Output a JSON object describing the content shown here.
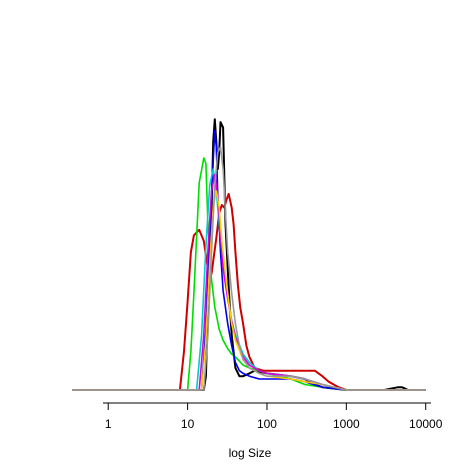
{
  "chart_data": {
    "type": "line",
    "title": "",
    "xlabel": "log Size",
    "ylabel": "",
    "xscale": "log",
    "xlim": [
      0.33,
      12000
    ],
    "ylim": [
      0,
      1.05
    ],
    "x_ticks": [
      1,
      10,
      100,
      1000,
      10000
    ],
    "x_tick_labels": [
      "1",
      "10",
      "100",
      "1000",
      "10000"
    ],
    "grid": false,
    "legend": "none",
    "series": [
      {
        "color": "#cc0000",
        "x": [
          0.35,
          8,
          9,
          10,
          11,
          12,
          14,
          16,
          18,
          20,
          23,
          25,
          27,
          29,
          31,
          33,
          36,
          38,
          40,
          43,
          46,
          50,
          55,
          60,
          70,
          90,
          130,
          200,
          300,
          400,
          500,
          600,
          800,
          1000,
          3000,
          10000
        ],
        "y": [
          0,
          0,
          0.14,
          0.32,
          0.5,
          0.56,
          0.58,
          0.54,
          0.44,
          0.42,
          0.55,
          0.64,
          0.67,
          0.66,
          0.69,
          0.71,
          0.66,
          0.6,
          0.5,
          0.38,
          0.3,
          0.24,
          0.16,
          0.12,
          0.08,
          0.07,
          0.07,
          0.07,
          0.07,
          0.07,
          0.05,
          0.03,
          0.01,
          0,
          0,
          0
        ]
      },
      {
        "color": "#000000",
        "x": [
          0.35,
          16,
          17,
          18,
          20,
          21,
          22,
          23,
          24,
          25,
          26,
          28,
          30,
          32,
          34,
          36,
          40,
          45,
          50,
          60,
          70,
          100,
          200,
          300,
          400,
          500,
          1000,
          3000,
          4500,
          5000,
          5500,
          6000,
          10000
        ],
        "y": [
          0,
          0,
          0.05,
          0.3,
          0.64,
          0.9,
          0.98,
          0.9,
          0.8,
          0.86,
          0.97,
          0.95,
          0.6,
          0.44,
          0.3,
          0.2,
          0.08,
          0.05,
          0.05,
          0.06,
          0.07,
          0.06,
          0.05,
          0.04,
          0.02,
          0.01,
          0,
          0,
          0.01,
          0.01,
          0.005,
          0,
          0
        ]
      },
      {
        "color": "#00dd00",
        "x": [
          0.35,
          10,
          11,
          12,
          14,
          16,
          17,
          18,
          20,
          22,
          25,
          28,
          32,
          36,
          40,
          50,
          60,
          80,
          100,
          150,
          200,
          300,
          500,
          1000,
          10000
        ],
        "y": [
          0,
          0,
          0.14,
          0.35,
          0.75,
          0.84,
          0.82,
          0.6,
          0.4,
          0.3,
          0.22,
          0.18,
          0.15,
          0.13,
          0.12,
          0.09,
          0.08,
          0.07,
          0.06,
          0.05,
          0.04,
          0.02,
          0.01,
          0,
          0
        ]
      },
      {
        "color": "#0000ee",
        "x": [
          0.35,
          15,
          17,
          19,
          21,
          22,
          23,
          24,
          26,
          28,
          32,
          36,
          40,
          45,
          50,
          60,
          80,
          100,
          200,
          300,
          500,
          1000,
          10000
        ],
        "y": [
          0,
          0,
          0.22,
          0.55,
          0.83,
          0.94,
          0.88,
          0.7,
          0.5,
          0.36,
          0.24,
          0.16,
          0.1,
          0.07,
          0.06,
          0.05,
          0.04,
          0.04,
          0.04,
          0.03,
          0.01,
          0,
          0
        ]
      },
      {
        "color": "#00cccc",
        "x": [
          0.35,
          13,
          15,
          17,
          19,
          21,
          23,
          25,
          28,
          32,
          36,
          40,
          50,
          60,
          80,
          100,
          200,
          300,
          500,
          1000,
          10000
        ],
        "y": [
          0,
          0,
          0.2,
          0.52,
          0.74,
          0.8,
          0.72,
          0.6,
          0.46,
          0.34,
          0.25,
          0.2,
          0.13,
          0.1,
          0.07,
          0.06,
          0.05,
          0.04,
          0.02,
          0,
          0
        ]
      },
      {
        "color": "#dd00dd",
        "x": [
          0.35,
          14,
          16,
          18,
          20,
          22,
          24,
          26,
          28,
          32,
          36,
          40,
          50,
          60,
          80,
          100,
          200,
          300,
          500,
          1000,
          10000
        ],
        "y": [
          0,
          0,
          0.2,
          0.5,
          0.72,
          0.78,
          0.7,
          0.56,
          0.44,
          0.33,
          0.25,
          0.19,
          0.12,
          0.09,
          0.07,
          0.06,
          0.05,
          0.04,
          0.02,
          0,
          0
        ]
      },
      {
        "color": "#ffcc00",
        "x": [
          0.35,
          15,
          17,
          19,
          21,
          23,
          25,
          27,
          30,
          33,
          36,
          40,
          50,
          60,
          80,
          100,
          200,
          300,
          500,
          1000,
          10000
        ],
        "y": [
          0,
          0,
          0.18,
          0.46,
          0.66,
          0.72,
          0.66,
          0.54,
          0.42,
          0.32,
          0.24,
          0.18,
          0.11,
          0.08,
          0.06,
          0.05,
          0.04,
          0.03,
          0.02,
          0,
          0
        ]
      },
      {
        "color": "#999999",
        "x": [
          0.35,
          16,
          18,
          20,
          22,
          24,
          26,
          28,
          30,
          32,
          36,
          40,
          45,
          50,
          60,
          80,
          100,
          200,
          300,
          500,
          1000,
          10000
        ],
        "y": [
          0,
          0,
          0.2,
          0.5,
          0.74,
          0.86,
          0.88,
          0.8,
          0.64,
          0.5,
          0.35,
          0.24,
          0.16,
          0.11,
          0.08,
          0.06,
          0.05,
          0.05,
          0.04,
          0.02,
          0,
          0
        ]
      }
    ]
  }
}
